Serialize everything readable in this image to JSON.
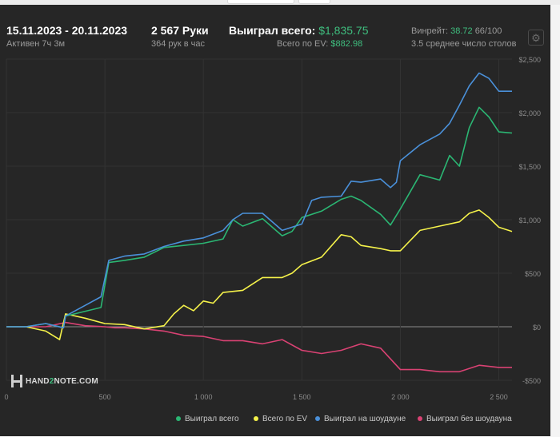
{
  "header": {
    "date_range": "15.11.2023 - 20.11.2023",
    "active_time": "Активен 7ч 3м",
    "hands": "2 567 Руки",
    "hands_per_hour": "364 рук в час",
    "won_total_label": "Выиграл всего:",
    "won_total_value": "$1,835.75",
    "ev_total_label": "Всего по EV:",
    "ev_total_value": "$882.98",
    "winrate_label": "Винрейт:",
    "winrate_value": "38.72",
    "winrate_sample": "66/100",
    "avg_tables": "3.5 среднее число столов"
  },
  "logo": {
    "text_prefix": "HAND",
    "text_mid": "2",
    "text_suffix": "NOTE.COM"
  },
  "colors": {
    "background": "#262626",
    "grid": "#333333",
    "zero_line": "#8a8a8a",
    "won_total": "#2bb673",
    "ev_total": "#f5f24a",
    "showdown": "#4a90d9",
    "non_showdown": "#d94273",
    "accent_green": "#3fbf7f"
  },
  "chart_data": {
    "type": "line",
    "xlabel": "",
    "ylabel": "",
    "xlim": [
      0,
      2567
    ],
    "ylim": [
      -500,
      2500
    ],
    "x_ticks": [
      0,
      500,
      1000,
      1500,
      2000,
      2500
    ],
    "x_tick_labels": [
      "0",
      "500",
      "1 000",
      "1 500",
      "2 000",
      "2 500"
    ],
    "y_ticks": [
      -500,
      0,
      500,
      1000,
      1500,
      2000,
      2500
    ],
    "y_tick_labels": [
      "-$500",
      "$0",
      "$500",
      "$1,000",
      "$1,500",
      "$2,000",
      "$2,500"
    ],
    "grid": true,
    "legend_position": "bottom-right",
    "series": [
      {
        "name": "Выиграл всего",
        "color": "#2bb673",
        "x": [
          0,
          100,
          200,
          290,
          300,
          480,
          520,
          600,
          700,
          800,
          900,
          1000,
          1100,
          1150,
          1200,
          1300,
          1400,
          1450,
          1500,
          1600,
          1700,
          1750,
          1800,
          1900,
          1950,
          2000,
          2100,
          2200,
          2250,
          2300,
          2350,
          2400,
          2450,
          2500,
          2567
        ],
        "y": [
          0,
          0,
          30,
          -10,
          100,
          180,
          600,
          620,
          650,
          740,
          760,
          780,
          820,
          1000,
          940,
          1010,
          850,
          890,
          1020,
          1080,
          1190,
          1220,
          1180,
          1050,
          950,
          1100,
          1420,
          1370,
          1600,
          1500,
          1860,
          2050,
          1960,
          1820,
          1810
        ]
      },
      {
        "name": "Всего по EV",
        "color": "#f5f24a",
        "x": [
          0,
          100,
          200,
          270,
          300,
          400,
          500,
          600,
          700,
          800,
          850,
          900,
          950,
          1000,
          1050,
          1100,
          1200,
          1300,
          1400,
          1450,
          1500,
          1600,
          1700,
          1750,
          1800,
          1900,
          1950,
          2000,
          2100,
          2200,
          2300,
          2350,
          2400,
          2450,
          2500,
          2567
        ],
        "y": [
          0,
          0,
          -40,
          -120,
          120,
          80,
          30,
          20,
          -20,
          10,
          120,
          200,
          150,
          240,
          220,
          320,
          340,
          460,
          460,
          500,
          580,
          650,
          860,
          840,
          760,
          730,
          710,
          710,
          900,
          940,
          980,
          1060,
          1090,
          1020,
          930,
          890
        ]
      },
      {
        "name": "Выиграл на шоудауне",
        "color": "#4a90d9",
        "x": [
          0,
          100,
          200,
          290,
          300,
          480,
          520,
          600,
          700,
          800,
          900,
          1000,
          1100,
          1150,
          1200,
          1300,
          1400,
          1500,
          1550,
          1600,
          1700,
          1750,
          1800,
          1900,
          1950,
          1980,
          2000,
          2100,
          2200,
          2250,
          2300,
          2350,
          2400,
          2450,
          2500,
          2567
        ],
        "y": [
          0,
          0,
          30,
          -10,
          100,
          280,
          620,
          660,
          680,
          750,
          800,
          830,
          900,
          1000,
          1060,
          1060,
          900,
          960,
          1180,
          1210,
          1220,
          1360,
          1350,
          1380,
          1300,
          1350,
          1550,
          1700,
          1800,
          1900,
          2070,
          2250,
          2370,
          2320,
          2200,
          2200
        ]
      },
      {
        "name": "Выиграл без шоудауна",
        "color": "#d94273",
        "x": [
          0,
          100,
          200,
          300,
          400,
          500,
          550,
          600,
          700,
          800,
          900,
          1000,
          1100,
          1200,
          1300,
          1400,
          1500,
          1600,
          1700,
          1800,
          1900,
          1950,
          2000,
          2100,
          2200,
          2300,
          2400,
          2500,
          2567
        ],
        "y": [
          0,
          0,
          0,
          40,
          10,
          0,
          -10,
          -10,
          -20,
          -40,
          -80,
          -90,
          -130,
          -130,
          -160,
          -120,
          -220,
          -250,
          -220,
          -160,
          -200,
          -300,
          -400,
          -400,
          -420,
          -420,
          -360,
          -380,
          -380
        ]
      }
    ]
  }
}
